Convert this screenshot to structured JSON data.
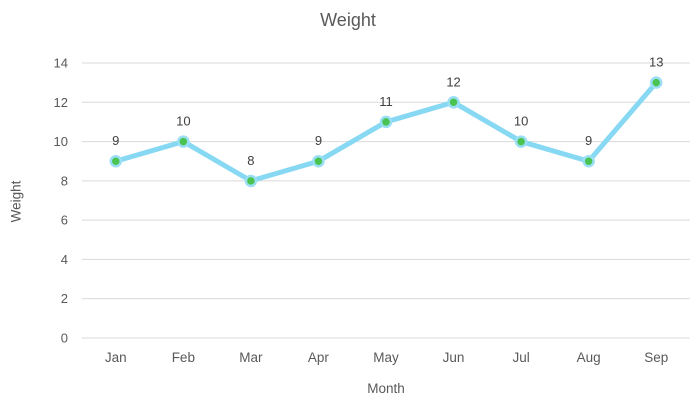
{
  "chart_data": {
    "type": "line",
    "title": "Weight",
    "xlabel": "Month",
    "ylabel": "Weight",
    "categories": [
      "Jan",
      "Feb",
      "Mar",
      "Apr",
      "May",
      "Jun",
      "Jul",
      "Aug",
      "Sep"
    ],
    "series": [
      {
        "name": "Weight",
        "values": [
          9,
          10,
          8,
          9,
          11,
          12,
          10,
          9,
          13
        ]
      }
    ],
    "data_labels_shown": true,
    "ylim": [
      0,
      14
    ],
    "ytick_step": 2,
    "yticks": [
      "0",
      "2",
      "4",
      "6",
      "8",
      "10",
      "12",
      "14"
    ],
    "grid": true,
    "legend_position": "none",
    "colors": {
      "line": "#87D8F3",
      "marker_fill": "#4AC350",
      "marker_ring": "#9ADFF5",
      "gridline": "#D9D9D9",
      "axis_text": "#595959",
      "data_label_text": "#404040",
      "title_text": "#595959",
      "background": "#FFFFFF"
    }
  }
}
